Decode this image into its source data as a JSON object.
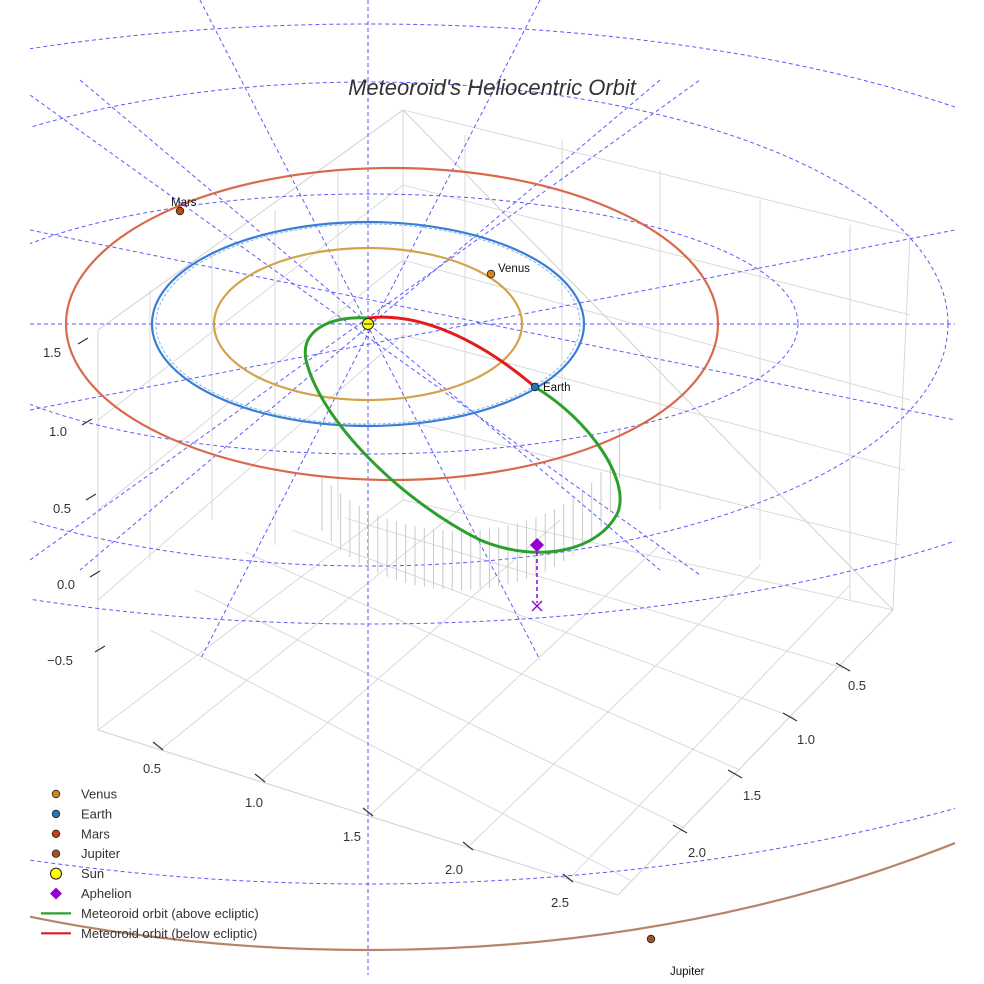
{
  "chart_data": {
    "type": "3d-orbit",
    "title": "Meteoroid's Heliocentric Orbit",
    "axes": {
      "x_ticks": [
        "0.5",
        "1.0",
        "1.5",
        "2.0",
        "2.5"
      ],
      "y_ticks": [
        "0.5",
        "1.0",
        "1.5",
        "2.0"
      ],
      "z_ticks": [
        "1.5",
        "1.0",
        "0.5",
        "0.0",
        "−0.5"
      ]
    },
    "planets": [
      {
        "name": "Venus",
        "color": "#d4a24c"
      },
      {
        "name": "Earth",
        "color": "#3a7fd5"
      },
      {
        "name": "Mars",
        "color": "#d9694a"
      },
      {
        "name": "Jupiter",
        "color": "#b5856a"
      }
    ],
    "points": {
      "sun": "Sun",
      "aphelion": "Aphelion"
    },
    "legend": [
      {
        "label": "Venus",
        "marker": "dot",
        "color": "#d4861a"
      },
      {
        "label": "Earth",
        "marker": "dot",
        "color": "#1f77b4"
      },
      {
        "label": "Mars",
        "marker": "dot",
        "color": "#c1440e"
      },
      {
        "label": "Jupiter",
        "marker": "dot",
        "color": "#a0522d"
      },
      {
        "label": "Sun",
        "marker": "sun",
        "color": "#ffff00"
      },
      {
        "label": "Aphelion",
        "marker": "diamond",
        "color": "#9400d3"
      },
      {
        "label": "Meteoroid orbit (above ecliptic)",
        "marker": "line",
        "color": "#2ca02c"
      },
      {
        "label": "Meteoroid orbit (below ecliptic)",
        "marker": "line",
        "color": "#e31a1c"
      }
    ]
  }
}
